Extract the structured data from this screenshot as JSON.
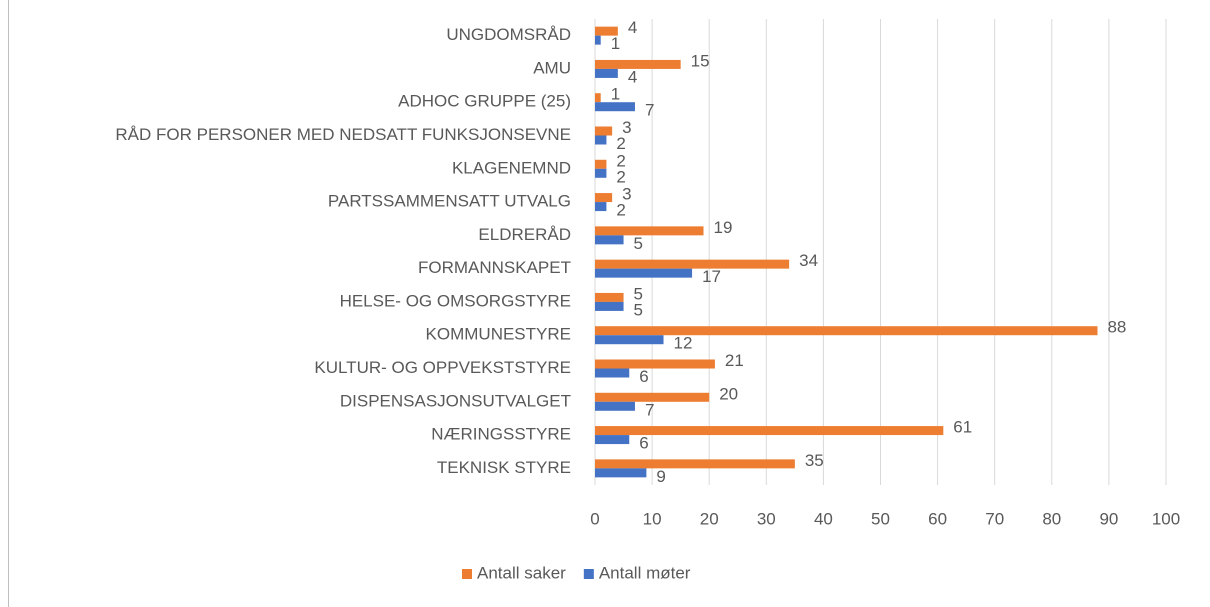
{
  "chart_data": {
    "type": "barh",
    "categories": [
      "UNGDOMSRÅD",
      "AMU",
      "ADHOC GRUPPE (25)",
      "RÅD FOR PERSONER MED NEDSATT FUNKSJONSEVNE",
      "KLAGENEMND",
      "PARTSSAMMENSATT UTVALG",
      "ELDRERÅD",
      "FORMANNSKAPET",
      "HELSE- OG OMSORGSTYRE",
      "KOMMUNESTYRE",
      "KULTUR- OG OPPVEKSTSTYRE",
      "DISPENSASJONSUTVALGET",
      "NÆRINGSSTYRE",
      "TEKNISK STYRE"
    ],
    "series": [
      {
        "name": "Antall saker",
        "color": "#ED7D31",
        "values": [
          4,
          15,
          1,
          3,
          2,
          3,
          19,
          34,
          5,
          88,
          21,
          20,
          61,
          35
        ]
      },
      {
        "name": "Antall møter",
        "color": "#4472C4",
        "values": [
          1,
          4,
          7,
          2,
          2,
          2,
          5,
          17,
          5,
          12,
          6,
          7,
          6,
          9
        ]
      }
    ],
    "xlim": [
      0,
      100
    ],
    "xticks": [
      0,
      10,
      20,
      30,
      40,
      50,
      60,
      70,
      80,
      90,
      100
    ],
    "grid": true,
    "legend": "bottom"
  }
}
